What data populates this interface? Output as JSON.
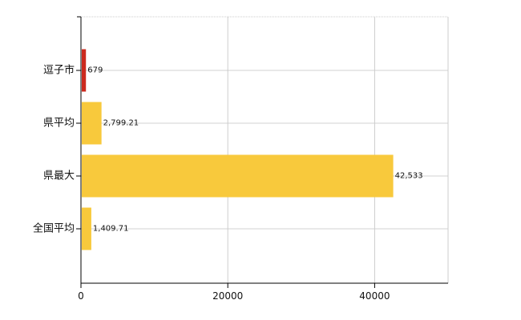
{
  "chart_data": {
    "type": "bar",
    "orientation": "horizontal",
    "categories": [
      "逗子市",
      "県平均",
      "県最大",
      "全国平均"
    ],
    "values": [
      679,
      2799.21,
      42533,
      1409.71
    ],
    "value_labels": [
      "679",
      "2,799.21",
      "42,533",
      "1,409.71"
    ],
    "bar_colors": [
      "#cc2a1e",
      "#f8c93c",
      "#f8c93c",
      "#f8c93c"
    ],
    "xlim": [
      0,
      50000
    ],
    "x_ticks": [
      0,
      20000,
      40000
    ],
    "x_tick_labels": [
      "0",
      "20000",
      "40000"
    ],
    "x_grid_at": [
      20000,
      40000,
      50000
    ],
    "grid": true,
    "title": "",
    "xlabel": "",
    "ylabel": ""
  }
}
